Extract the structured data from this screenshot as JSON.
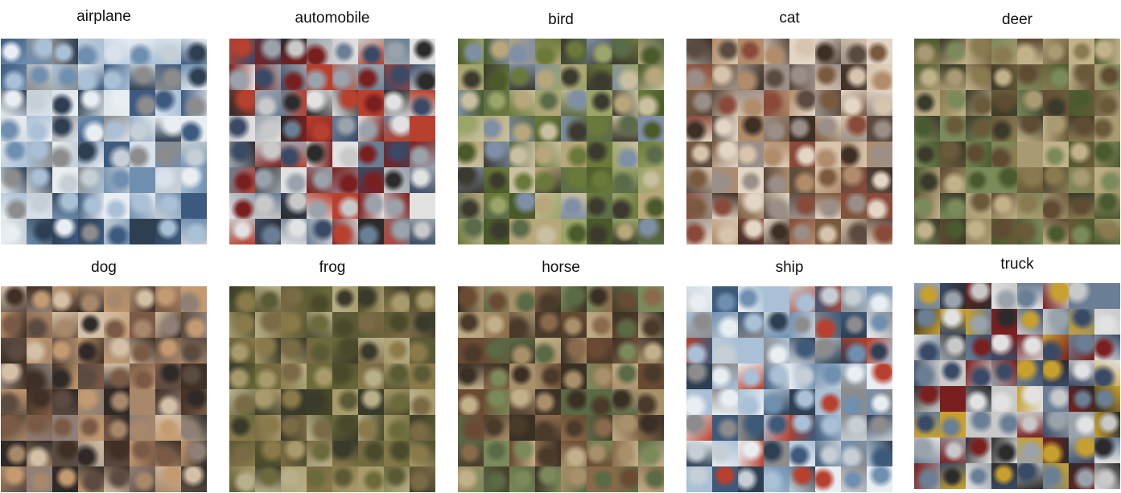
{
  "grid": {
    "rows": 8,
    "cols": 8
  },
  "classes": [
    {
      "label": "airplane",
      "palette": [
        "#6f8fb0",
        "#a9c0d6",
        "#d9e2ea",
        "#3d5a80",
        "#8c8c8c",
        "#c6cfd6",
        "#2e3f52",
        "#e9eef2"
      ]
    },
    {
      "label": "automobile",
      "palette": [
        "#7a1f1f",
        "#3a4a66",
        "#9aa3ab",
        "#c9c9c9",
        "#2b2b2b",
        "#6a7f95",
        "#b8402e",
        "#e2e2e2"
      ]
    },
    {
      "label": "bird",
      "palette": [
        "#6b7a3a",
        "#9aa56a",
        "#4a5a2a",
        "#b7a77a",
        "#3c3a2f",
        "#7f8fa6",
        "#c8c0a0",
        "#5a6b4a"
      ]
    },
    {
      "label": "cat",
      "palette": [
        "#7a5a3e",
        "#b08c6a",
        "#3e2f25",
        "#d6c4ad",
        "#5a4a3f",
        "#9a8f88",
        "#e3d6c6",
        "#8a4a3a"
      ]
    },
    {
      "label": "deer",
      "palette": [
        "#6a5a3a",
        "#8a7a4f",
        "#4a5a2f",
        "#a89a72",
        "#3a3a2a",
        "#7a8a5a",
        "#c2b28a",
        "#5f4a32"
      ]
    },
    {
      "label": "dog",
      "palette": [
        "#7a5a45",
        "#a8886a",
        "#3f2f25",
        "#d3c0a6",
        "#5a4a40",
        "#8f7f76",
        "#c49a70",
        "#2f2a28"
      ]
    },
    {
      "label": "frog",
      "palette": [
        "#6a6a3a",
        "#8a7a4a",
        "#4a4a2a",
        "#a89a6a",
        "#3a3a2a",
        "#7a6a45",
        "#b8b08a",
        "#5a5a35"
      ]
    },
    {
      "label": "horse",
      "palette": [
        "#6a4a32",
        "#8a6a4a",
        "#4a3a2a",
        "#a8906a",
        "#3a2f25",
        "#7a8a5a",
        "#c2b08a",
        "#5a6a45"
      ]
    },
    {
      "label": "ship",
      "palette": [
        "#3d5a7a",
        "#6f8fb0",
        "#a9c0d6",
        "#2e3f52",
        "#8c8c8c",
        "#c6cfd6",
        "#b8402e",
        "#e9eef2"
      ]
    },
    {
      "label": "truck",
      "palette": [
        "#7a1f1f",
        "#3a4a66",
        "#9aa3ab",
        "#c9c9c9",
        "#2b2b2b",
        "#6a7f95",
        "#c8a02e",
        "#e2e2e2"
      ]
    }
  ]
}
